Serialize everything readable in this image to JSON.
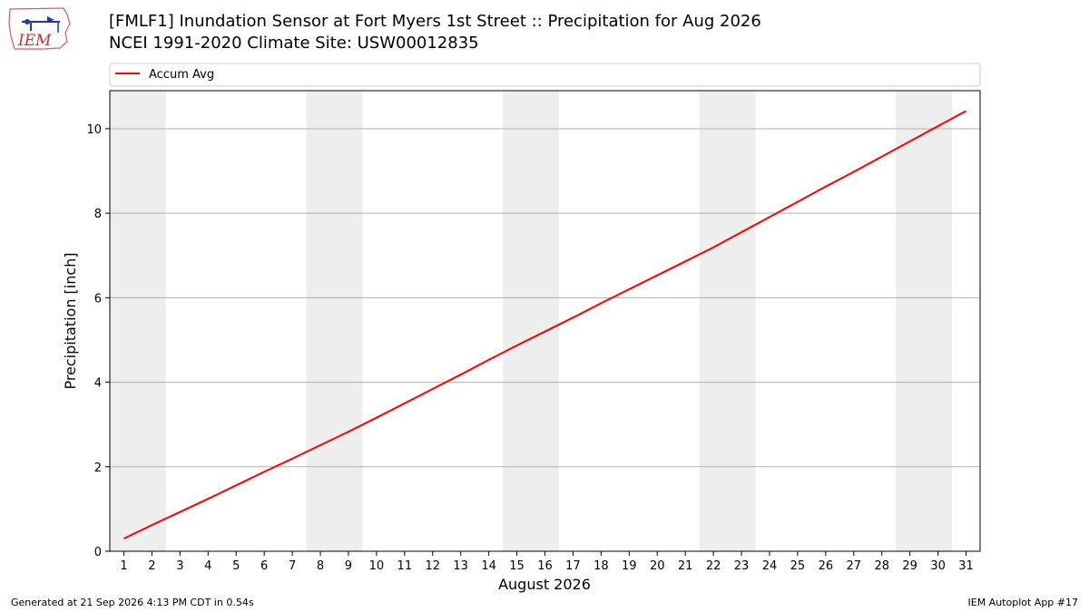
{
  "logo": {
    "text": "IEM"
  },
  "title": {
    "line1": "[FMLF1] Inundation Sensor at Fort Myers 1st Street :: Precipitation for Aug 2026",
    "line2": "NCEI 1991-2020 Climate Site: USW00012835"
  },
  "footer": {
    "left": "Generated at 21 Sep 2026 4:13 PM CDT in 0.54s",
    "right": "IEM Autoplot App #17"
  },
  "colors": {
    "line": "#ff0000",
    "weekend_band": "#eeeeee",
    "grid": "#b0b0b0"
  },
  "chart_data": {
    "type": "line",
    "title": "[FMLF1] Inundation Sensor at Fort Myers 1st Street :: Precipitation for Aug 2026",
    "subtitle": "NCEI 1991-2020 Climate Site: USW00012835",
    "xlabel": "August 2026",
    "ylabel": "Precipitation [inch]",
    "x": [
      1,
      2,
      3,
      4,
      5,
      6,
      7,
      8,
      9,
      10,
      11,
      12,
      13,
      14,
      15,
      16,
      17,
      18,
      19,
      20,
      21,
      22,
      23,
      24,
      25,
      26,
      27,
      28,
      29,
      30,
      31
    ],
    "x_tick_labels": [
      "1",
      "2",
      "3",
      "4",
      "5",
      "6",
      "7",
      "8",
      "9",
      "10",
      "11",
      "12",
      "13",
      "14",
      "15",
      "16",
      "17",
      "18",
      "19",
      "20",
      "21",
      "22",
      "23",
      "24",
      "25",
      "26",
      "27",
      "28",
      "29",
      "30",
      "31"
    ],
    "xlim": [
      0.5,
      31.5
    ],
    "ylim": [
      0,
      10.9
    ],
    "y_ticks": [
      0,
      2,
      4,
      6,
      8,
      10
    ],
    "grid": "horizontal",
    "legend_position": "top",
    "shaded_days": [
      [
        1,
        2
      ],
      [
        8,
        9
      ],
      [
        15,
        16
      ],
      [
        22,
        23
      ],
      [
        29,
        30
      ]
    ],
    "series": [
      {
        "name": "Accum Avg",
        "color": "#ff0000",
        "values": [
          0.3,
          0.62,
          0.93,
          1.24,
          1.56,
          1.88,
          2.19,
          2.51,
          2.83,
          3.16,
          3.5,
          3.84,
          4.18,
          4.53,
          4.87,
          5.2,
          5.53,
          5.87,
          6.2,
          6.53,
          6.86,
          7.19,
          7.55,
          7.91,
          8.27,
          8.63,
          8.98,
          9.34,
          9.7,
          10.06,
          10.42
        ]
      }
    ]
  }
}
